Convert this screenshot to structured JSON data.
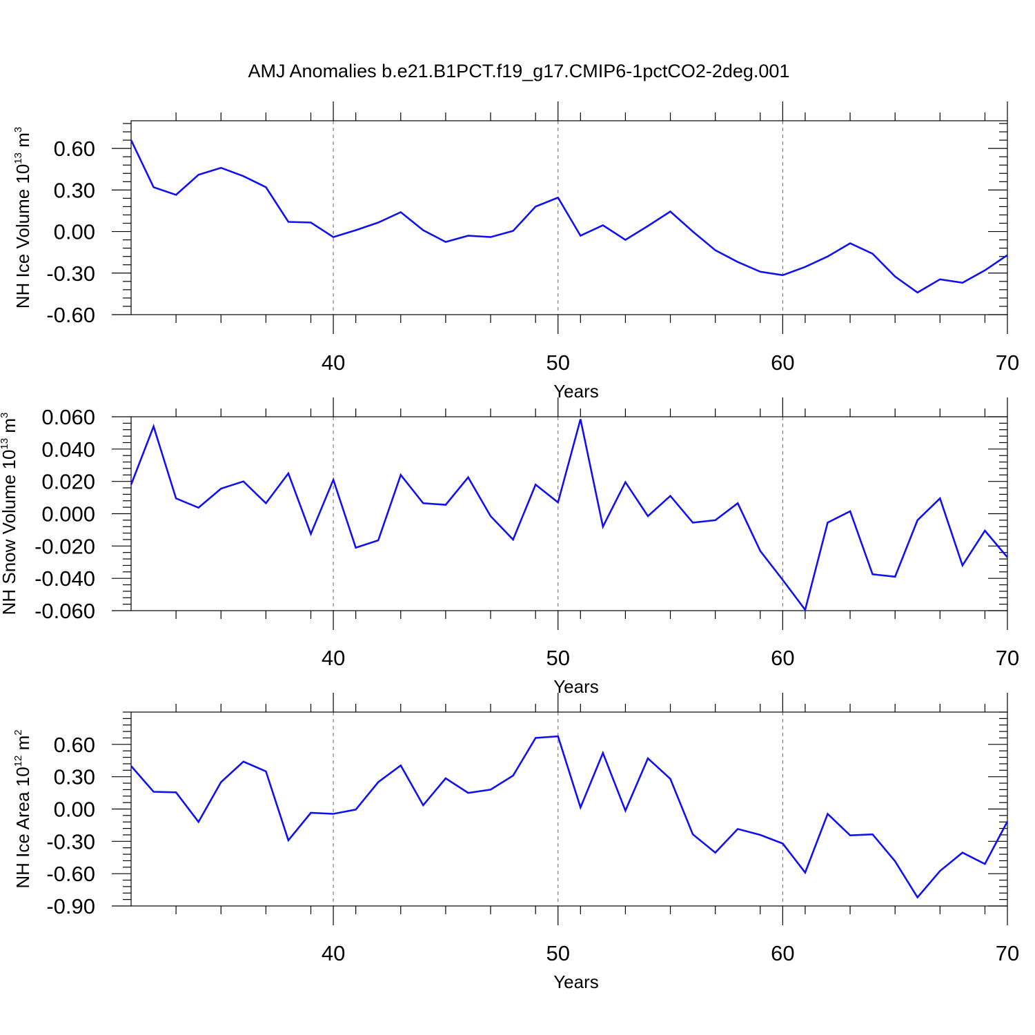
{
  "title": "AMJ Anomalies b.e21.B1PCT.f19_g17.CMIP6-1pctCO2-2deg.001",
  "chart_data": [
    {
      "type": "line",
      "xlabel": "Years",
      "ylabel": {
        "text": "NH Ice Volume 10",
        "sup": "13",
        "unit": " m",
        "unit_sup": "3"
      },
      "xlim": [
        31,
        70
      ],
      "ylim": [
        -0.6,
        0.8
      ],
      "x_ticks": [
        40,
        50,
        60,
        70
      ],
      "y_ticks": [
        -0.6,
        -0.3,
        0.0,
        0.3,
        0.6
      ],
      "y_tick_labels": [
        "-0.60",
        "-0.30",
        "0.00",
        "0.30",
        "0.60"
      ],
      "grid": "dashed vertical at major x ticks",
      "x": [
        31,
        32,
        33,
        34,
        35,
        36,
        37,
        38,
        39,
        40,
        41,
        42,
        43,
        44,
        45,
        46,
        47,
        48,
        49,
        50,
        51,
        52,
        53,
        54,
        55,
        56,
        57,
        58,
        59,
        60,
        61,
        62,
        63,
        64,
        65,
        66,
        67,
        68,
        69,
        70
      ],
      "values": [
        0.66,
        0.32,
        0.265,
        0.41,
        0.46,
        0.4,
        0.32,
        0.07,
        0.065,
        -0.04,
        0.01,
        0.065,
        0.14,
        0.01,
        -0.075,
        -0.03,
        -0.04,
        0.005,
        0.18,
        0.245,
        -0.03,
        0.045,
        -0.06,
        0.04,
        0.145,
        0.0,
        -0.135,
        -0.22,
        -0.29,
        -0.315,
        -0.255,
        -0.18,
        -0.085,
        -0.16,
        -0.325,
        -0.44,
        -0.345,
        -0.37,
        -0.28,
        -0.17
      ]
    },
    {
      "type": "line",
      "xlabel": "Years",
      "ylabel": {
        "text": "NH Snow Volume 10",
        "sup": "13",
        "unit": " m",
        "unit_sup": "3"
      },
      "xlim": [
        31,
        70
      ],
      "ylim": [
        -0.06,
        0.06
      ],
      "x_ticks": [
        40,
        50,
        60,
        70
      ],
      "y_ticks": [
        -0.06,
        -0.04,
        -0.02,
        0.0,
        0.02,
        0.04,
        0.06
      ],
      "y_tick_labels": [
        "-0.060",
        "-0.040",
        "-0.020",
        "0.000",
        "0.020",
        "0.040",
        "0.060"
      ],
      "grid": "dashed vertical at major x ticks",
      "x": [
        31,
        32,
        33,
        34,
        35,
        36,
        37,
        38,
        39,
        40,
        41,
        42,
        43,
        44,
        45,
        46,
        47,
        48,
        49,
        50,
        51,
        52,
        53,
        54,
        55,
        56,
        57,
        58,
        59,
        60,
        61,
        62,
        63,
        64,
        65,
        66,
        67,
        68,
        69,
        70
      ],
      "values": [
        0.018,
        0.054,
        0.0095,
        0.0037,
        0.0155,
        0.02,
        0.0065,
        0.025,
        -0.0125,
        0.021,
        -0.021,
        -0.0165,
        0.024,
        0.0065,
        0.0055,
        0.0225,
        -0.0015,
        -0.016,
        0.018,
        0.007,
        0.0585,
        -0.008,
        0.0195,
        -0.0015,
        0.011,
        -0.0055,
        -0.004,
        0.0065,
        -0.023,
        -0.041,
        -0.0595,
        -0.0055,
        0.0015,
        -0.0375,
        -0.039,
        -0.004,
        0.0095,
        -0.032,
        -0.0105,
        -0.027
      ]
    },
    {
      "type": "line",
      "xlabel": "Years",
      "ylabel": {
        "text": "NH Ice Area 10",
        "sup": "12",
        "unit": " m",
        "unit_sup": "2"
      },
      "xlim": [
        31,
        70
      ],
      "ylim": [
        -0.9,
        0.9
      ],
      "x_ticks": [
        40,
        50,
        60,
        70
      ],
      "y_ticks": [
        -0.9,
        -0.6,
        -0.3,
        0.0,
        0.3,
        0.6
      ],
      "y_tick_labels": [
        "-0.90",
        "-0.60",
        "-0.30",
        "0.00",
        "0.30",
        "0.60"
      ],
      "grid": "dashed vertical at major x ticks",
      "x": [
        31,
        32,
        33,
        34,
        35,
        36,
        37,
        38,
        39,
        40,
        41,
        42,
        43,
        44,
        45,
        46,
        47,
        48,
        49,
        50,
        51,
        52,
        53,
        54,
        55,
        56,
        57,
        58,
        59,
        60,
        61,
        62,
        63,
        64,
        65,
        66,
        67,
        68,
        69,
        70
      ],
      "values": [
        0.4,
        0.16,
        0.155,
        -0.12,
        0.25,
        0.44,
        0.35,
        -0.29,
        -0.035,
        -0.045,
        -0.005,
        0.25,
        0.405,
        0.035,
        0.285,
        0.15,
        0.18,
        0.31,
        0.66,
        0.675,
        0.015,
        0.52,
        -0.015,
        0.47,
        0.28,
        -0.235,
        -0.405,
        -0.185,
        -0.24,
        -0.32,
        -0.59,
        -0.045,
        -0.245,
        -0.235,
        -0.485,
        -0.82,
        -0.575,
        -0.405,
        -0.51,
        -0.115
      ]
    }
  ]
}
